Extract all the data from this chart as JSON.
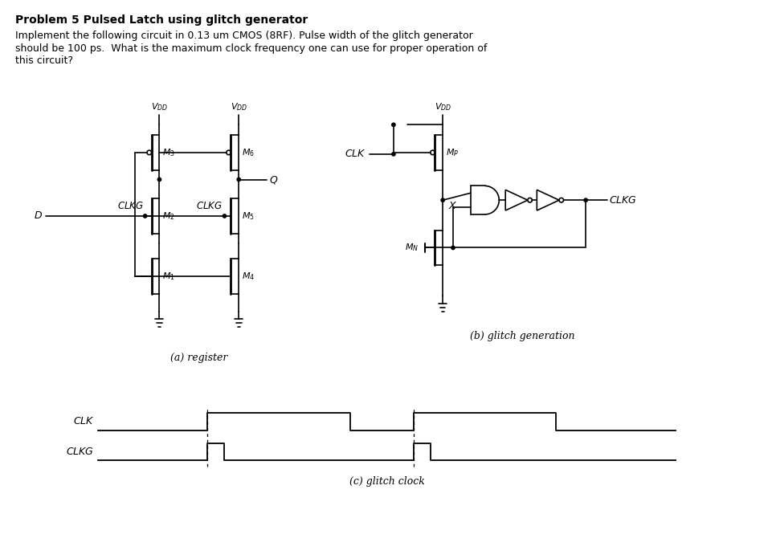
{
  "title": "Problem 5 Pulsed Latch using glitch generator",
  "body_text_1": "Implement the following circuit in 0.13 um CMOS (8RF). Pulse width of the glitch generator",
  "body_text_2": "should be 100 ps.  What is the maximum clock frequency one can use for proper operation of",
  "body_text_3": "this circuit?",
  "subtitle_a": "(a) register",
  "subtitle_b": "(b) glitch generation",
  "subtitle_c": "(c) glitch clock",
  "bg_color": "#ffffff",
  "line_color": "#000000",
  "text_color": "#000000",
  "label_color": "#000000"
}
